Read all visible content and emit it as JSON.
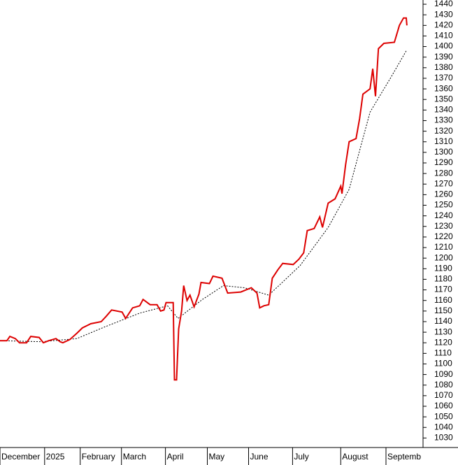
{
  "chart_data": {
    "type": "line",
    "xlim": [
      0,
      202
    ],
    "ylim": [
      1021,
      1444
    ],
    "xticks": [
      {
        "value": 0,
        "label": "December"
      },
      {
        "value": 21.3,
        "label": "2025"
      },
      {
        "value": 38.3,
        "label": "February"
      },
      {
        "value": 58,
        "label": "March"
      },
      {
        "value": 79,
        "label": "April"
      },
      {
        "value": 99,
        "label": "May"
      },
      {
        "value": 118.7,
        "label": "June"
      },
      {
        "value": 139.7,
        "label": "July"
      },
      {
        "value": 162.7,
        "label": "August"
      },
      {
        "value": 184.3,
        "label": "Septemb"
      }
    ],
    "yticks": [
      1030,
      1040,
      1050,
      1060,
      1070,
      1080,
      1090,
      1100,
      1110,
      1120,
      1130,
      1140,
      1150,
      1160,
      1170,
      1180,
      1190,
      1200,
      1210,
      1220,
      1230,
      1240,
      1250,
      1260,
      1270,
      1280,
      1290,
      1300,
      1310,
      1320,
      1330,
      1340,
      1350,
      1360,
      1370,
      1380,
      1390,
      1400,
      1410,
      1420,
      1430,
      1440
    ],
    "series": [
      {
        "color": "#dd0000",
        "style": "solid",
        "x": [
          0,
          3.3,
          4.7,
          7.3,
          9.3,
          12.7,
          14.7,
          18.7,
          20.7,
          23.3,
          26.7,
          28.7,
          30,
          33.3,
          36.7,
          39.3,
          43.3,
          48.3,
          50.7,
          53.3,
          58.3,
          60,
          63.3,
          66.7,
          68.3,
          71.7,
          75,
          76.7,
          78.3,
          79.3,
          82.7,
          83.3,
          84.3,
          85.3,
          86.7,
          87.7,
          89.3,
          90.7,
          92.7,
          95,
          96,
          100,
          101.7,
          106,
          108.7,
          115,
          120,
          122.7,
          124,
          126,
          128.3,
          130,
          132.7,
          135,
          140,
          142.7,
          145,
          146.7,
          150,
          152.7,
          154,
          156.7,
          160,
          162.7,
          163.3,
          165,
          166.7,
          170,
          171.7,
          173.3,
          176.7,
          178,
          179.3,
          180.7,
          183.3,
          188.3,
          190.7,
          192.7,
          194,
          194.3
        ],
        "values": [
          1122,
          1122,
          1126,
          1124,
          1120,
          1120,
          1126,
          1125,
          1120,
          1122,
          1124,
          1121,
          1120,
          1123,
          1129,
          1134,
          1138,
          1140,
          1145,
          1151,
          1149,
          1143,
          1153,
          1155,
          1161,
          1156,
          1156,
          1150,
          1151,
          1158,
          1158,
          1085,
          1085,
          1133,
          1150,
          1174,
          1160,
          1165,
          1154,
          1166,
          1177,
          1176,
          1183,
          1181,
          1167,
          1168,
          1172,
          1167,
          1153,
          1155,
          1156,
          1181,
          1189,
          1195,
          1194,
          1199,
          1205,
          1226,
          1228,
          1239,
          1229,
          1252,
          1256,
          1268,
          1261,
          1288,
          1310,
          1313,
          1332,
          1355,
          1360,
          1379,
          1353,
          1398,
          1403,
          1404,
          1420,
          1427,
          1427,
          1420
        ]
      },
      {
        "color": "#000000",
        "style": "dotted",
        "x": [
          0,
          20,
          36.7,
          50,
          66.7,
          80,
          85,
          96.7,
          106.7,
          116.7,
          128.3,
          143.3,
          156.7,
          166.7,
          176.7,
          186.7,
          194
        ],
        "values": [
          1122,
          1121,
          1124,
          1135,
          1148,
          1155,
          1143,
          1161,
          1174,
          1172,
          1165,
          1193,
          1229,
          1265,
          1338,
          1371,
          1396
        ]
      }
    ]
  }
}
